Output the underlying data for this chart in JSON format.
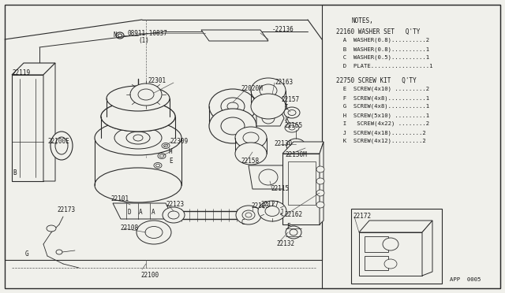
{
  "bg_color": "#f0f0eb",
  "line_color": "#2a2a2a",
  "text_color": "#1a1a1a",
  "border_color": "#333333",
  "notes_title": "NOTES,",
  "washer_set_label": "22160 WASHER SET   Q'TY",
  "washer_items": [
    "  A  WASHER(0.8)..........2",
    "  B  WASHER(0.8)..........1",
    "  C  WASHER(0.5)..........1",
    "  D  PLATE.................1"
  ],
  "screw_kit_label": "22750 SCREW KIT   Q'TY",
  "screw_items": [
    "  E  SCREW(4x10) .........2",
    "  F  SCREW(4x8)...........1",
    "  G  SCREW(4x8)...........1",
    "  H  SCREW(5x10) .........1",
    "  I   SCREW(4x22) ........2",
    "  J  SCREW(4x18).........2",
    "  K  SCREW(4x12).........2"
  ],
  "app_code": "APP  0005",
  "font_size": 5.5,
  "font_size_notes": 5.2,
  "font_size_notes_hd": 5.5,
  "fig_w": 6.4,
  "fig_h": 3.72,
  "dpi": 100
}
